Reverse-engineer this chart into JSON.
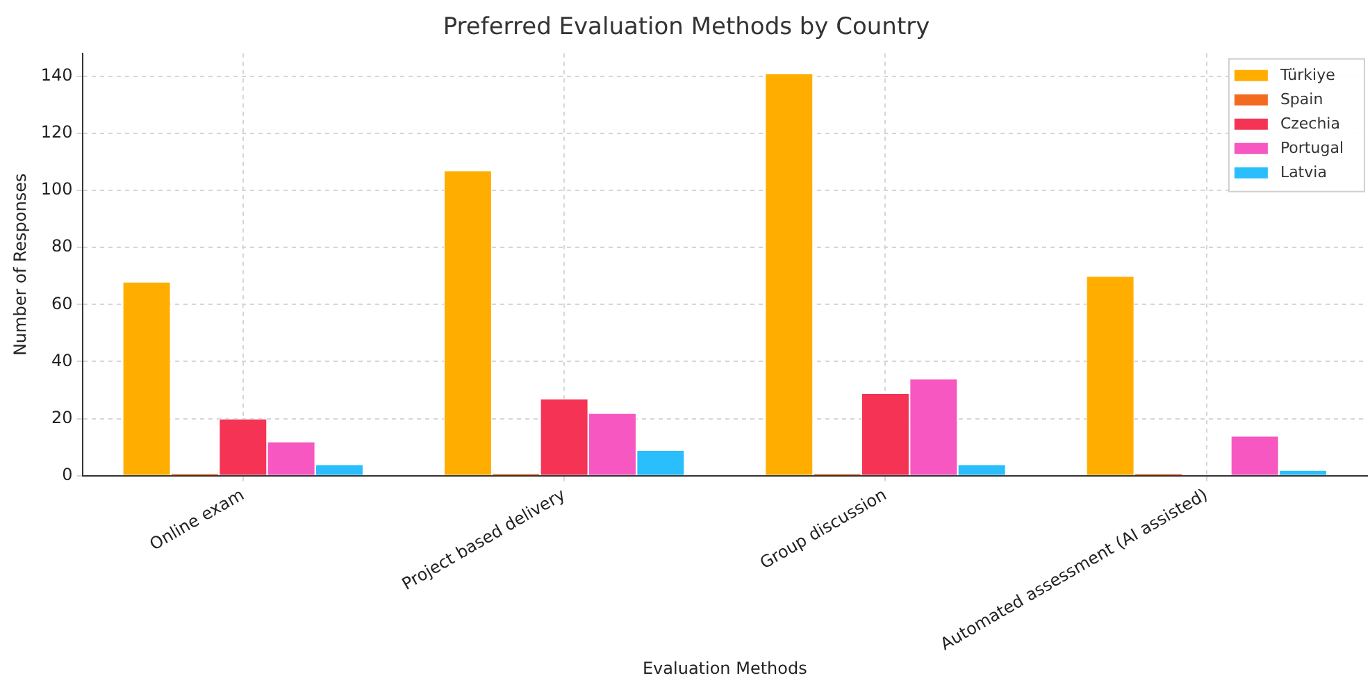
{
  "chart_data": {
    "type": "bar",
    "title": "Preferred Evaluation Methods by Country",
    "xlabel": "Evaluation Methods",
    "ylabel": "Number of Responses",
    "categories": [
      "Online exam",
      "Project based delivery",
      "Group discussion",
      "Automated assessment (AI assisted)"
    ],
    "series": [
      {
        "name": "Türkiye",
        "color": "#ffae00",
        "values": [
          68,
          107,
          141,
          70
        ]
      },
      {
        "name": "Spain",
        "color": "#f26b21",
        "values": [
          1,
          1,
          1,
          1
        ]
      },
      {
        "name": "Czechia",
        "color": "#f53455",
        "values": [
          20,
          27,
          29,
          0
        ]
      },
      {
        "name": "Portugal",
        "color": "#f757c0",
        "values": [
          12,
          22,
          34,
          14
        ]
      },
      {
        "name": "Latvia",
        "color": "#2abefc",
        "values": [
          4,
          9,
          4,
          2
        ]
      }
    ],
    "ylim": [
      0,
      148
    ],
    "yticks": [
      0,
      20,
      40,
      60,
      80,
      100,
      120,
      140
    ],
    "grid": true,
    "legend": "top right"
  }
}
